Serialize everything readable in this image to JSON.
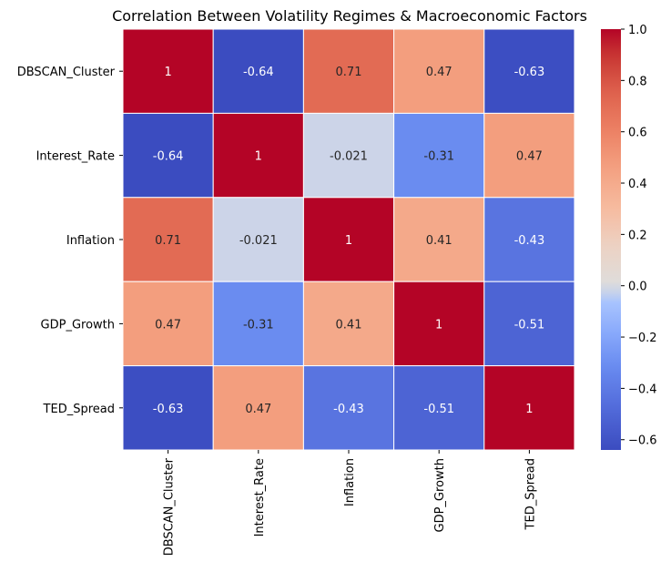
{
  "chart_data": {
    "type": "heatmap",
    "title": "Correlation Between Volatility Regimes & Macroeconomic Factors",
    "rows": [
      "DBSCAN_Cluster",
      "Interest_Rate",
      "Inflation",
      "GDP_Growth",
      "TED_Spread"
    ],
    "columns": [
      "DBSCAN_Cluster",
      "Interest_Rate",
      "Inflation",
      "GDP_Growth",
      "TED_Spread"
    ],
    "values": [
      [
        1,
        -0.64,
        0.71,
        0.47,
        -0.63
      ],
      [
        -0.64,
        1,
        -0.021,
        -0.31,
        0.47
      ],
      [
        0.71,
        -0.021,
        1,
        0.41,
        -0.43
      ],
      [
        0.47,
        -0.31,
        0.41,
        1,
        -0.51
      ],
      [
        -0.63,
        0.47,
        -0.43,
        -0.51,
        1
      ]
    ],
    "cell_labels": [
      [
        "1",
        "-0.64",
        "0.71",
        "0.47",
        "-0.63"
      ],
      [
        "-0.64",
        "1",
        "-0.021",
        "-0.31",
        "0.47"
      ],
      [
        "0.71",
        "-0.021",
        "1",
        "0.41",
        "-0.43"
      ],
      [
        "0.47",
        "-0.31",
        "0.41",
        "1",
        "-0.51"
      ],
      [
        "-0.63",
        "0.47",
        "-0.43",
        "-0.51",
        "1"
      ]
    ],
    "colormap": "coolwarm",
    "vmin": -0.64,
    "vmax": 1,
    "colorbar_ticks": [
      1.0,
      0.8,
      0.6,
      0.4,
      0.2,
      0.0,
      -0.2,
      -0.4,
      -0.6
    ],
    "colorbar_tick_labels": [
      "1.0",
      "0.8",
      "0.6",
      "0.4",
      "0.2",
      "0.0",
      "−0.2",
      "−0.4",
      "−0.6"
    ],
    "grid": false,
    "legend": "colorbar-right"
  }
}
